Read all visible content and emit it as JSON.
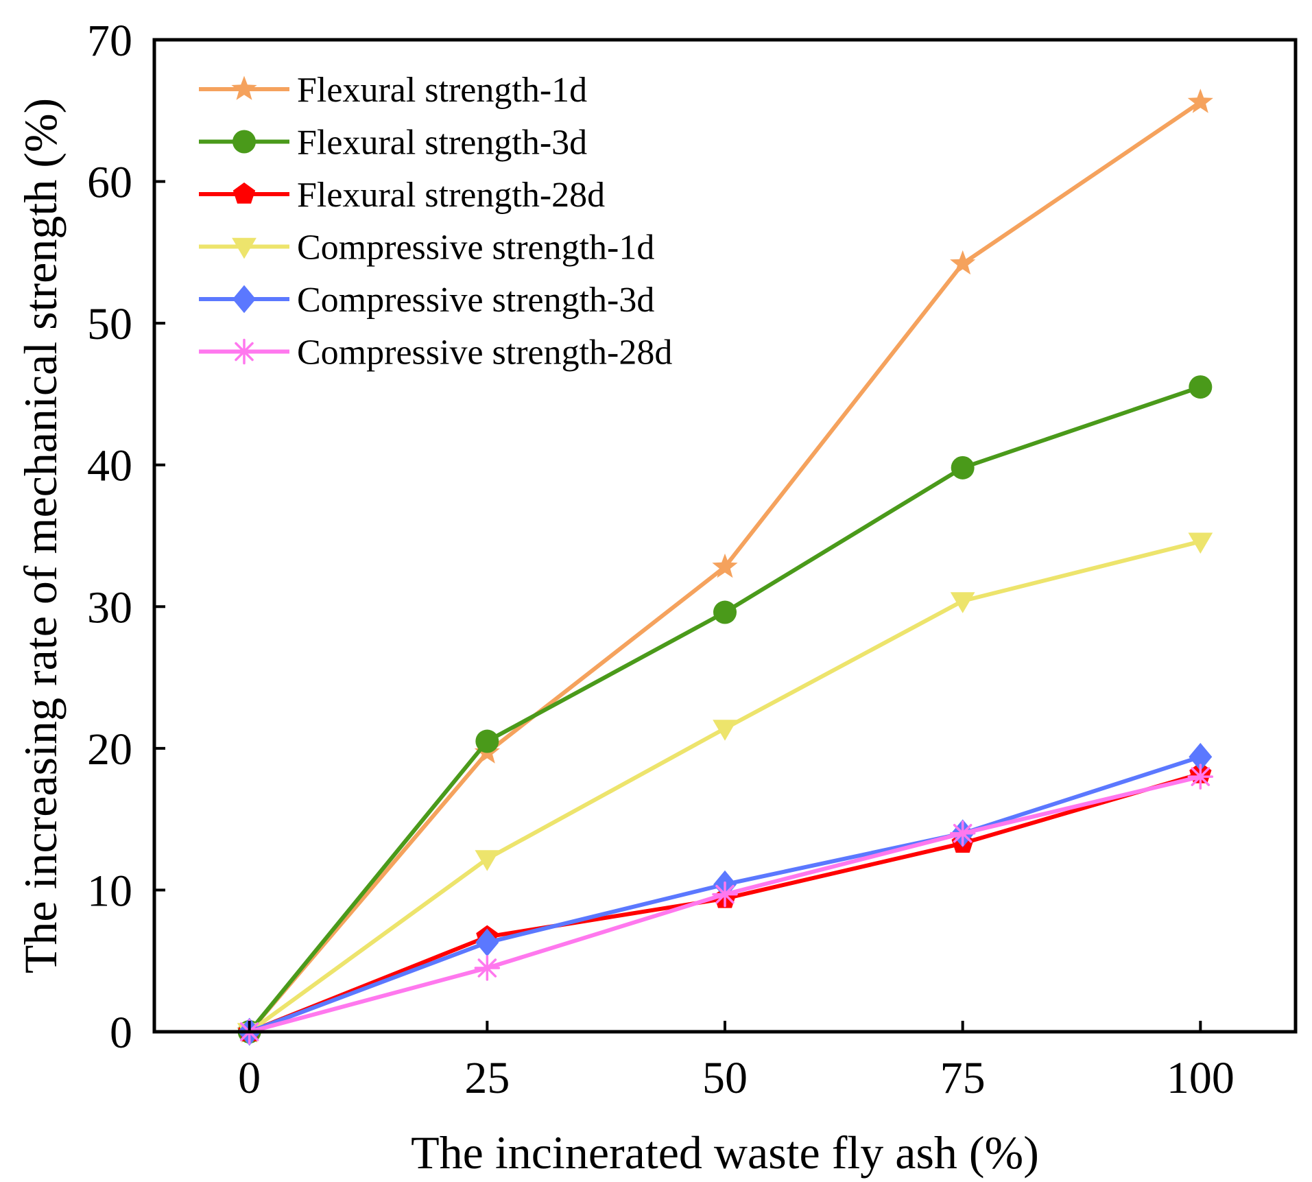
{
  "chart_data": {
    "type": "line",
    "xlabel": "The incinerated waste fly ash (%)",
    "ylabel": "The increasing rate of mechanical strength (%)",
    "x": [
      0,
      25,
      50,
      75,
      100
    ],
    "xlim": [
      -10,
      110
    ],
    "ylim": [
      0,
      70
    ],
    "xticks": [
      "0",
      "25",
      "50",
      "75",
      "100"
    ],
    "yticks": [
      "0",
      "10",
      "20",
      "30",
      "40",
      "50",
      "60",
      "70"
    ],
    "grid": false,
    "legend_position": "top-left",
    "series": [
      {
        "name": "Flexural strength-1d",
        "color": "#f5a25d",
        "marker": "star",
        "values": [
          0,
          19.7,
          32.8,
          54.2,
          65.6
        ]
      },
      {
        "name": "Flexural strength-3d",
        "color": "#4a9a1a",
        "marker": "circle",
        "values": [
          0,
          20.5,
          29.6,
          39.8,
          45.5
        ]
      },
      {
        "name": "Flexural strength-28d",
        "color": "#ff0000",
        "marker": "pentagon",
        "values": [
          0,
          6.7,
          9.4,
          13.3,
          18.2
        ]
      },
      {
        "name": "Compressive strength-1d",
        "color": "#ede46c",
        "marker": "triangle-down",
        "values": [
          0,
          12.2,
          21.4,
          30.4,
          34.6
        ]
      },
      {
        "name": "Compressive strength-3d",
        "color": "#5b78ff",
        "marker": "diamond",
        "values": [
          0,
          6.3,
          10.4,
          14.0,
          19.4
        ]
      },
      {
        "name": "Compressive strength-28d",
        "color": "#ff78ee",
        "marker": "asterisk",
        "values": [
          0,
          4.5,
          9.7,
          14.0,
          18.0
        ]
      }
    ]
  }
}
